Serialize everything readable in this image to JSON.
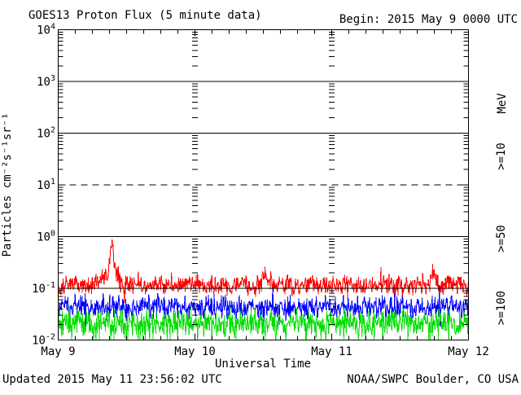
{
  "window": {
    "background": "#ffffff"
  },
  "header": {
    "title": "GOES13 Proton Flux (5 minute data)",
    "begin": "Begin: 2015 May 9 0000 UTC"
  },
  "footer": {
    "updated": "Updated 2015 May 11 23:56:02 UTC",
    "source": "NOAA/SWPC Boulder, CO USA"
  },
  "legend": {
    "unit": "MeV",
    "unit_color": "#000000",
    "items": [
      {
        "label": ">=10",
        "color": "#ff0000"
      },
      {
        "label": ">=50",
        "color": "#0000ff"
      },
      {
        "label": ">=100",
        "color": "#00dd00"
      }
    ]
  },
  "chart_data": {
    "type": "line",
    "title": "GOES13 Proton Flux (5 minute data)",
    "xlabel": "Universal Time",
    "ylabel": "Particles cm⁻²s⁻¹sr⁻¹",
    "x_ticks": [
      "May 9",
      "May 10",
      "May 11",
      "May 12"
    ],
    "x_range_days": 3,
    "samples_per_day": 288,
    "y_tick_exponents": [
      4,
      3,
      2,
      1,
      0,
      -1,
      -2
    ],
    "ylim_log10": [
      -2,
      4
    ],
    "yaxis_scale": "log10",
    "grid": {
      "solid_decades": [
        3,
        2,
        0,
        -1
      ],
      "dashed_decades": [
        1
      ],
      "day_boundaries": [
        1,
        2
      ]
    },
    "series": [
      {
        "name": ">=10 MeV",
        "color": "#ff0000",
        "log10_mean": -0.94,
        "log10_noise": 0.24,
        "typical_flux": 0.115,
        "flux_range": [
          0.06,
          0.2
        ],
        "peak_flux": 0.53,
        "peak_time_days": 0.39,
        "bumps": [
          {
            "day": 0.39,
            "amp": 0.66,
            "sigma": 0.012
          },
          {
            "day": 0.38,
            "amp": 0.22,
            "sigma": 0.05
          },
          {
            "day": 1.52,
            "amp": 0.16,
            "sigma": 0.03
          },
          {
            "day": 2.74,
            "amp": 0.18,
            "sigma": 0.015
          }
        ],
        "up_p": 0.04,
        "up_amp": 0.3,
        "down_p": 0.03,
        "down_amp": 0.25,
        "seed": 101
      },
      {
        "name": ">=50 MeV",
        "color": "#0000ff",
        "log10_mean": -1.36,
        "log10_noise": 0.28,
        "typical_flux": 0.044,
        "flux_range": [
          0.02,
          0.1
        ],
        "up_p": 0.02,
        "up_amp": 0.35,
        "down_p": 0.05,
        "down_amp": 0.3,
        "seed": 202
      },
      {
        "name": ">=100 MeV",
        "color": "#00dd00",
        "log10_mean": -1.66,
        "log10_noise": 0.3,
        "typical_flux": 0.022,
        "flux_range": [
          0.01,
          0.05
        ],
        "up_p": 0.02,
        "up_amp": 0.25,
        "down_p": 0.1,
        "down_amp": 0.45,
        "clip_floor_log10": -2,
        "seed": 303
      }
    ],
    "legend_position": "right-rotated",
    "grid_on": true
  }
}
